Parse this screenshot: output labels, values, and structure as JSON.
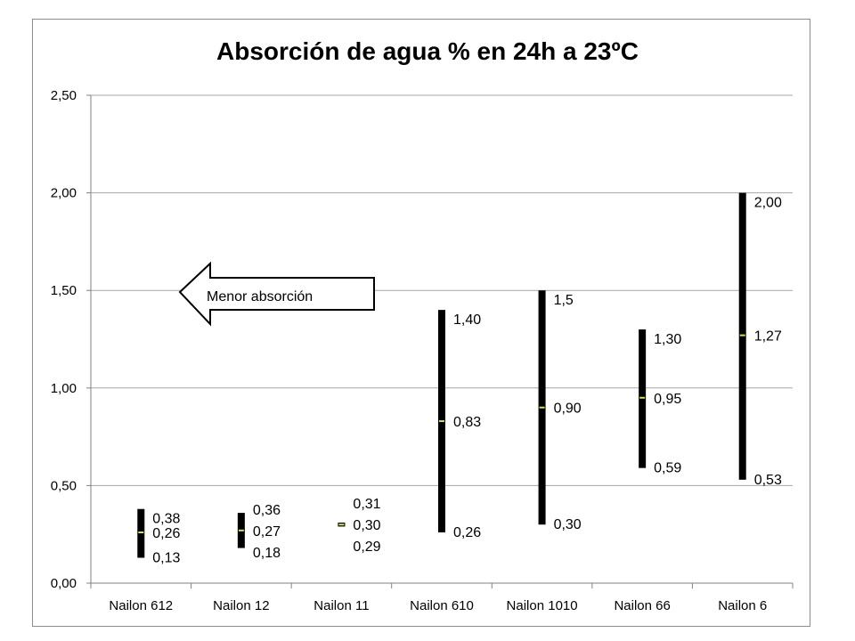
{
  "chart_data": {
    "type": "range",
    "title": "Absorción de agua % en 24h a 23ºC",
    "xlabel": "",
    "ylabel": "",
    "ylim": [
      0,
      2.5
    ],
    "y_ticks": [
      "0,00",
      "0,50",
      "1,00",
      "1,50",
      "2,00",
      "2,50"
    ],
    "grid": true,
    "categories": [
      "Nailon 612",
      "Nailon 12",
      "Nailon 11",
      "Nailon 610",
      "Nailon 1010",
      "Nailon 66",
      "Nailon 6"
    ],
    "high": [
      0.38,
      0.36,
      0.31,
      1.4,
      1.5,
      1.3,
      2.0
    ],
    "mid": [
      0.26,
      0.27,
      0.3,
      0.83,
      0.9,
      0.95,
      1.27
    ],
    "low": [
      0.13,
      0.18,
      0.29,
      0.26,
      0.3,
      0.59,
      0.53
    ],
    "high_labels": [
      "0,38",
      "0,36",
      "0,31",
      "1,40",
      "1,5",
      "1,30",
      "2,00"
    ],
    "mid_labels": [
      "0,26",
      "0,27",
      "0,30",
      "0,83",
      "0,90",
      "0,95",
      "1,27"
    ],
    "low_labels": [
      "0,13",
      "0,18",
      "0,29",
      "0,26",
      "0,30",
      "0,59",
      "0,53"
    ],
    "bar_color": "#000000",
    "mid_marker_color": "#d4e157",
    "annotation": "Menor absorción"
  }
}
